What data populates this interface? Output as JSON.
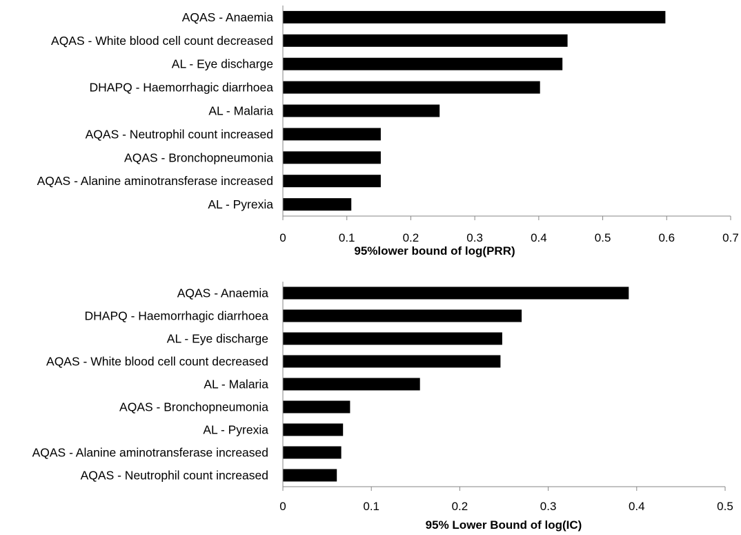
{
  "chart_data": [
    {
      "type": "bar",
      "orientation": "horizontal",
      "categories": [
        "AQAS - Anaemia",
        "AQAS - White blood cell count decreased",
        "AL - Eye discharge",
        "DHAPQ - Haemorrhagic diarrhoea",
        "AL - Malaria",
        "AQAS - Neutrophil count increased",
        "AQAS - Bronchopneumonia",
        "AQAS - Alanine aminotransferase increased",
        "AL - Pyrexia"
      ],
      "values": [
        0.598,
        0.445,
        0.437,
        0.402,
        0.245,
        0.153,
        0.153,
        0.153,
        0.107
      ],
      "title": "",
      "xlabel": "95%lower bound of log(PRR)",
      "ylabel": "",
      "xlim": [
        0,
        0.7
      ],
      "ticks": [
        "0",
        "0.1",
        "0.2",
        "0.3",
        "0.4",
        "0.5",
        "0.6",
        "0.7"
      ],
      "tick_values": [
        0,
        0.1,
        0.2,
        0.3,
        0.4,
        0.5,
        0.6,
        0.7
      ],
      "bar_color": "#000000",
      "grid": false,
      "legend": "none"
    },
    {
      "type": "bar",
      "orientation": "horizontal",
      "categories": [
        "AQAS - Anaemia",
        "DHAPQ - Haemorrhagic diarrhoea",
        "AL - Eye discharge",
        "AQAS - White blood cell count decreased",
        "AL - Malaria",
        "AQAS - Bronchopneumonia",
        "AL - Pyrexia",
        "AQAS - Alanine aminotransferase increased",
        "AQAS - Neutrophil count increased"
      ],
      "values": [
        0.391,
        0.27,
        0.248,
        0.246,
        0.155,
        0.076,
        0.068,
        0.066,
        0.061
      ],
      "title": "",
      "xlabel": "95% Lower Bound of log(IC)",
      "ylabel": "",
      "xlim": [
        0,
        0.5
      ],
      "ticks": [
        "0",
        "0.1",
        "0.2",
        "0.3",
        "0.4",
        "0.5"
      ],
      "tick_values": [
        0,
        0.1,
        0.2,
        0.3,
        0.4,
        0.5
      ],
      "bar_color": "#000000",
      "grid": false,
      "legend": "none"
    }
  ]
}
